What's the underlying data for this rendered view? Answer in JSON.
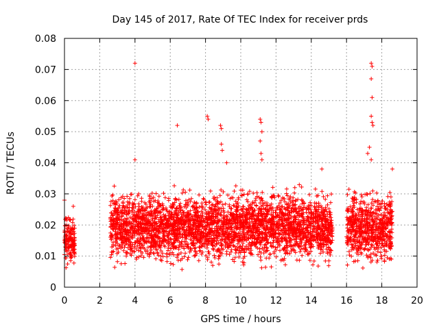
{
  "chart_data": {
    "type": "scatter",
    "title": "Day 145 of 2017, Rate Of TEC Index for receiver prds",
    "xlabel": "GPS time / hours",
    "ylabel": "ROTI / TECUs",
    "xlim": [
      0,
      20
    ],
    "ylim": [
      0,
      0.08
    ],
    "xticks": [
      0,
      2,
      4,
      6,
      8,
      10,
      12,
      14,
      16,
      18,
      20
    ],
    "xtick_labels": [
      "0",
      "2",
      "4",
      "6",
      "8",
      "10",
      "12",
      "14",
      "16",
      "18",
      "20"
    ],
    "yticks": [
      0,
      0.01,
      0.02,
      0.03,
      0.04,
      0.05,
      0.06,
      0.07,
      0.08
    ],
    "ytick_labels": [
      "0",
      "0.01",
      "0.02",
      "0.03",
      "0.04",
      "0.05",
      "0.06",
      "0.07",
      "0.08"
    ],
    "grid": true,
    "marker": "+",
    "color": "#ff0000",
    "series_name": "ROTI",
    "data_segments_hours": [
      [
        0.0,
        0.6
      ],
      [
        2.6,
        15.2
      ],
      [
        16.0,
        18.6
      ]
    ],
    "typical_range": [
      0.005,
      0.03
    ],
    "notable_points": [
      {
        "x": 4.0,
        "y": 0.072
      },
      {
        "x": 4.0,
        "y": 0.041
      },
      {
        "x": 6.4,
        "y": 0.052
      },
      {
        "x": 8.1,
        "y": 0.055
      },
      {
        "x": 8.15,
        "y": 0.054
      },
      {
        "x": 8.85,
        "y": 0.052
      },
      {
        "x": 8.9,
        "y": 0.051
      },
      {
        "x": 8.9,
        "y": 0.046
      },
      {
        "x": 8.95,
        "y": 0.044
      },
      {
        "x": 9.2,
        "y": 0.04
      },
      {
        "x": 11.1,
        "y": 0.054
      },
      {
        "x": 11.15,
        "y": 0.053
      },
      {
        "x": 11.2,
        "y": 0.05
      },
      {
        "x": 11.1,
        "y": 0.047
      },
      {
        "x": 11.15,
        "y": 0.043
      },
      {
        "x": 11.2,
        "y": 0.041
      },
      {
        "x": 14.6,
        "y": 0.038
      },
      {
        "x": 17.2,
        "y": 0.043
      },
      {
        "x": 17.3,
        "y": 0.045
      },
      {
        "x": 17.4,
        "y": 0.072
      },
      {
        "x": 17.45,
        "y": 0.071
      },
      {
        "x": 17.4,
        "y": 0.067
      },
      {
        "x": 17.45,
        "y": 0.061
      },
      {
        "x": 17.4,
        "y": 0.055
      },
      {
        "x": 17.45,
        "y": 0.053
      },
      {
        "x": 17.5,
        "y": 0.052
      },
      {
        "x": 17.4,
        "y": 0.041
      },
      {
        "x": 18.6,
        "y": 0.038
      },
      {
        "x": 0.0,
        "y": 0.028
      },
      {
        "x": 0.5,
        "y": 0.026
      }
    ]
  }
}
